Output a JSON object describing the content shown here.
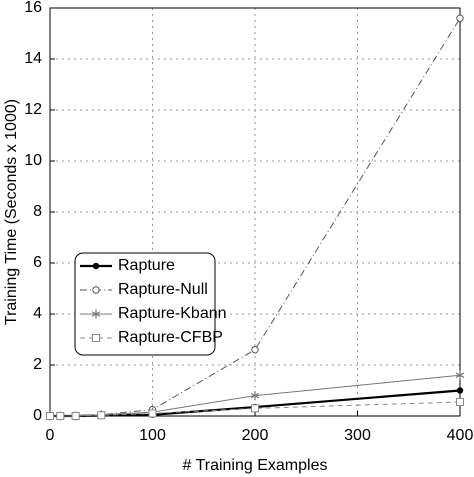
{
  "chart_data": {
    "type": "line",
    "x_label": "# Training Examples",
    "y_label": "Training Time (Seconds x 1000)",
    "x": [
      0,
      10,
      25,
      50,
      100,
      200,
      400
    ],
    "series": [
      {
        "name": "Rapture",
        "color": "#000000",
        "values": [
          0,
          0,
          0,
          0.02,
          0.05,
          0.35,
          1.0
        ]
      },
      {
        "name": "Rapture-Null",
        "color": "#555555",
        "values": [
          0,
          0,
          0,
          0.05,
          0.25,
          2.6,
          15.6
        ]
      },
      {
        "name": "Rapture-Kbann",
        "color": "#777777",
        "values": [
          0,
          0,
          0,
          0.05,
          0.15,
          0.8,
          1.6
        ]
      },
      {
        "name": "Rapture-CFBP",
        "color": "#888888",
        "values": [
          0,
          0,
          0,
          0.03,
          0.1,
          0.3,
          0.55
        ]
      }
    ],
    "xlim": [
      0,
      400
    ],
    "xticks": [
      0,
      100,
      200,
      300,
      400
    ],
    "ylim": [
      0,
      16
    ],
    "yticks": [
      0,
      2,
      4,
      6,
      8,
      10,
      12,
      14,
      16
    ],
    "grid": true,
    "legend": "center-left"
  }
}
